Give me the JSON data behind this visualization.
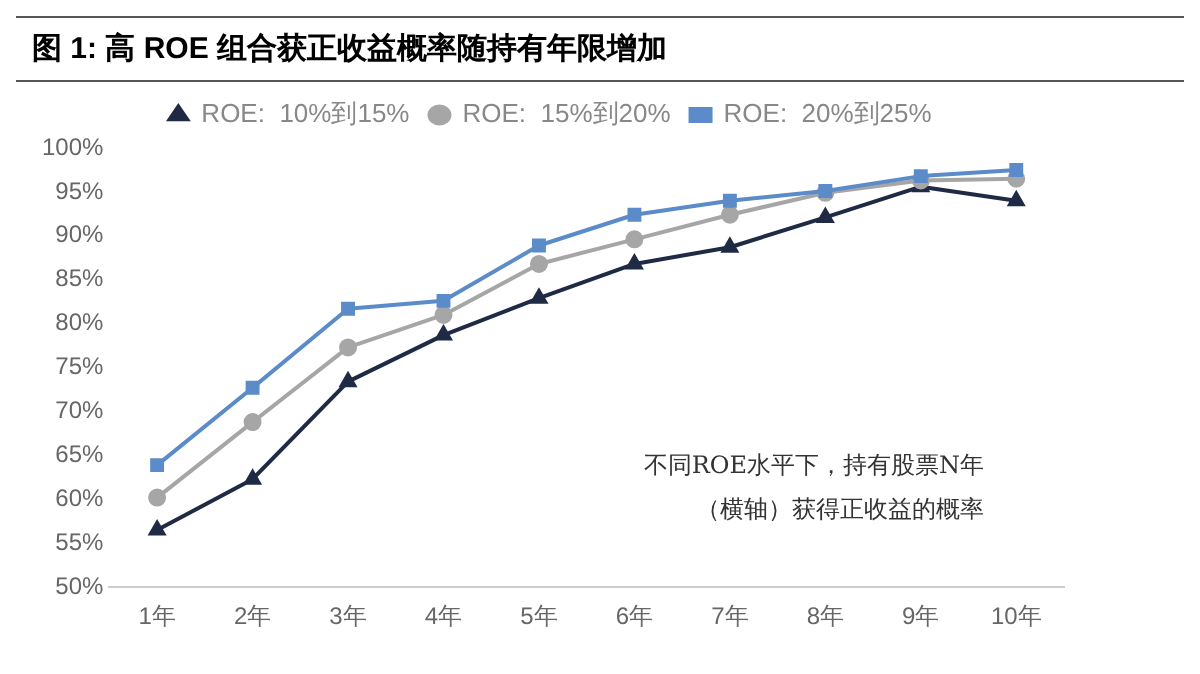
{
  "chart_data": {
    "type": "line",
    "title": "图 1:  高 ROE 组合获正收益概率随持有年限增加",
    "categories": [
      "1年",
      "2年",
      "3年",
      "4年",
      "5年",
      "6年",
      "7年",
      "8年",
      "9年",
      "10年"
    ],
    "series": [
      {
        "name": "ROE:  10%到15%",
        "color": "#1f2a44",
        "marker": "triangle",
        "values": [
          56.5,
          62.3,
          73.4,
          78.7,
          82.9,
          86.8,
          88.7,
          92.1,
          95.6,
          94.0
        ]
      },
      {
        "name": "ROE:  15%到20%",
        "color": "#a6a6a6",
        "marker": "circle",
        "values": [
          60.2,
          68.8,
          77.3,
          81.0,
          86.8,
          89.6,
          92.4,
          94.9,
          96.3,
          96.5
        ]
      },
      {
        "name": "ROE:  20%到25%",
        "color": "#5b8bc9",
        "marker": "square",
        "values": [
          63.9,
          72.7,
          81.7,
          82.6,
          88.9,
          92.4,
          94.0,
          95.1,
          96.8,
          97.5
        ]
      }
    ],
    "ylim": [
      50,
      100
    ],
    "yticks": [
      {
        "value": 50,
        "label": "50%"
      },
      {
        "value": 55,
        "label": "55%"
      },
      {
        "value": 60,
        "label": "60%"
      },
      {
        "value": 65,
        "label": "65%"
      },
      {
        "value": 70,
        "label": "70%"
      },
      {
        "value": 75,
        "label": "75%"
      },
      {
        "value": 80,
        "label": "80%"
      },
      {
        "value": 85,
        "label": "85%"
      },
      {
        "value": 90,
        "label": "90%"
      },
      {
        "value": 95,
        "label": "95%"
      },
      {
        "value": 100,
        "label": "100%"
      }
    ],
    "grid": false,
    "legend": "top",
    "annotations": [
      "不同ROE水平下，持有股票N年",
      "（横轴）获得正收益的概率"
    ]
  }
}
